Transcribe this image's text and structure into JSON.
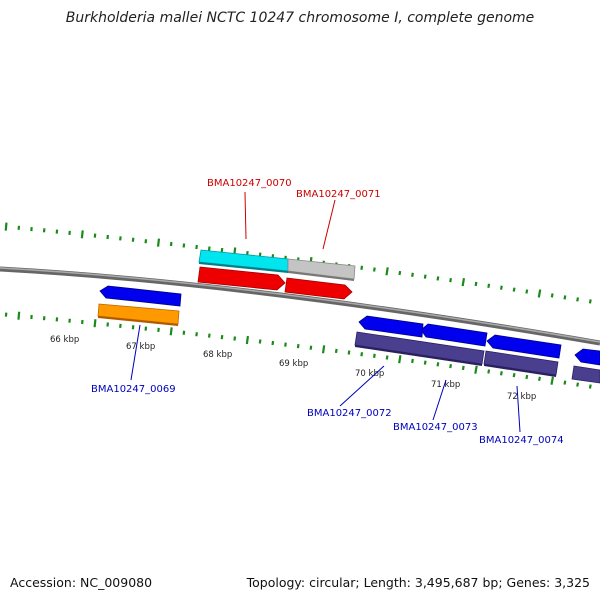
{
  "title": "Burkholderia mallei NCTC 10247 chromosome I, complete genome",
  "footer": {
    "accession": "Accession: NC_009080",
    "summary": "Topology: circular; Length: 3,495,687 bp; Genes: 3,325"
  },
  "colors": {
    "backbone": "#888888",
    "ticks": "#1a8a1a",
    "forward_label": "#cc0000",
    "reverse_label": "#0000bb",
    "cyan": "#00e5ee",
    "gray": "#bbbbbb",
    "red": "#ee0000",
    "blue": "#0000ee",
    "orange": "#ff9900",
    "slate": "#4a3f8f"
  },
  "scale_labels": [
    "66 kbp",
    "67 kbp",
    "68 kbp",
    "69 kbp",
    "70 kbp",
    "71 kbp",
    "72 kbp"
  ],
  "gene_labels": {
    "g0070": "BMA10247_0070",
    "g0071": "BMA10247_0071",
    "g0069": "BMA10247_0069",
    "g0072": "BMA10247_0072",
    "g0073": "BMA10247_0073",
    "g0074": "BMA10247_0074"
  }
}
